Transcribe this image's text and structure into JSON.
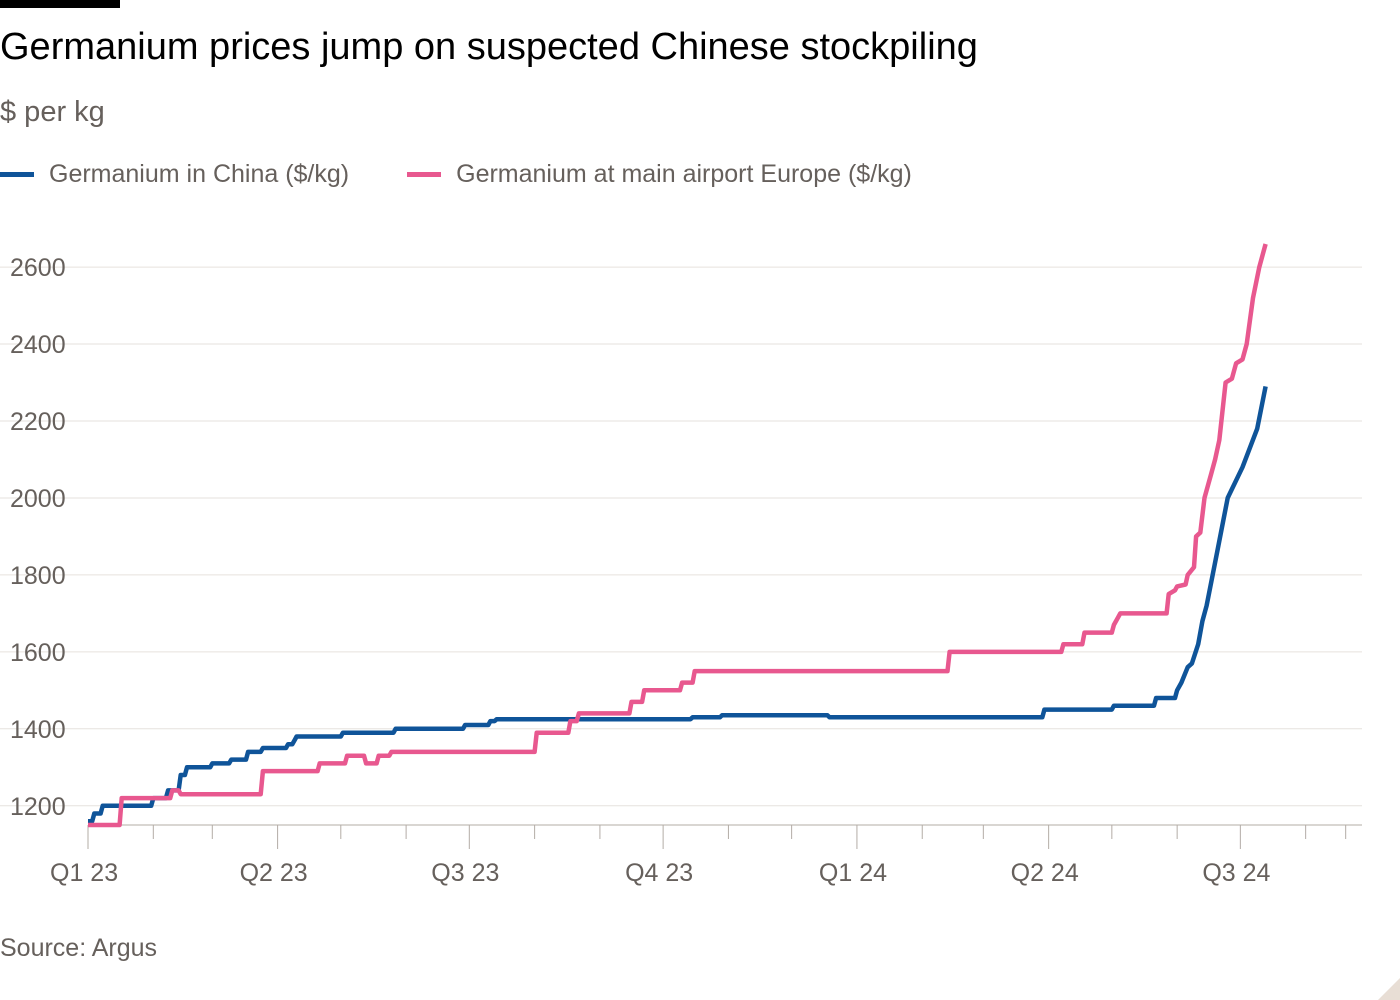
{
  "title": "Germanium prices jump on suspected Chinese stockpiling",
  "subtitle": "$ per kg",
  "source": "Source: Argus",
  "colors": {
    "china": "#0f5499",
    "europe": "#e8588f",
    "grid": "#e6e2de",
    "axis": "#b3aca6",
    "text": "#66605c"
  },
  "chart_data": {
    "type": "line",
    "title": "Germanium prices jump on suspected Chinese stockpiling",
    "ylabel": "$ per kg",
    "xlabel": "",
    "x_unit": "date",
    "x_range": [
      "2023-01-01",
      "2024-08-23"
    ],
    "ylim": [
      1150,
      2660
    ],
    "yticks": [
      1200,
      1400,
      1600,
      1800,
      2000,
      2200,
      2400,
      2600
    ],
    "xticks": [
      {
        "label": "Q1 23",
        "date": "2023-01-01"
      },
      {
        "label": "Q2 23",
        "date": "2023-04-01"
      },
      {
        "label": "Q3 23",
        "date": "2023-07-01"
      },
      {
        "label": "Q4 23",
        "date": "2023-10-01"
      },
      {
        "label": "Q1 24",
        "date": "2024-01-01"
      },
      {
        "label": "Q2 24",
        "date": "2024-04-01"
      },
      {
        "label": "Q3 24",
        "date": "2024-07-01"
      }
    ],
    "minor_ticks": [
      "2023-02-01",
      "2023-03-01",
      "2023-05-01",
      "2023-06-01",
      "2023-08-01",
      "2023-09-01",
      "2023-11-01",
      "2023-12-01",
      "2024-02-01",
      "2024-03-01",
      "2024-05-01",
      "2024-06-01",
      "2024-08-01",
      "2024-08-20"
    ],
    "grid": true,
    "legend": "top-left",
    "series": [
      {
        "name": "Germanium in China ($/kg)",
        "color": "#0f5499",
        "points": [
          [
            "2023-01-01",
            1160
          ],
          [
            "2023-01-03",
            1160
          ],
          [
            "2023-01-04",
            1180
          ],
          [
            "2023-01-07",
            1180
          ],
          [
            "2023-01-08",
            1200
          ],
          [
            "2023-01-31",
            1200
          ],
          [
            "2023-02-01",
            1220
          ],
          [
            "2023-02-07",
            1220
          ],
          [
            "2023-02-08",
            1240
          ],
          [
            "2023-02-13",
            1240
          ],
          [
            "2023-02-14",
            1280
          ],
          [
            "2023-02-16",
            1280
          ],
          [
            "2023-02-17",
            1300
          ],
          [
            "2023-02-28",
            1300
          ],
          [
            "2023-03-01",
            1310
          ],
          [
            "2023-03-09",
            1310
          ],
          [
            "2023-03-10",
            1320
          ],
          [
            "2023-03-17",
            1320
          ],
          [
            "2023-03-18",
            1340
          ],
          [
            "2023-03-24",
            1340
          ],
          [
            "2023-03-25",
            1350
          ],
          [
            "2023-04-05",
            1350
          ],
          [
            "2023-04-06",
            1360
          ],
          [
            "2023-04-08",
            1360
          ],
          [
            "2023-04-09",
            1370
          ],
          [
            "2023-04-10",
            1380
          ],
          [
            "2023-05-01",
            1380
          ],
          [
            "2023-05-02",
            1390
          ],
          [
            "2023-05-26",
            1390
          ],
          [
            "2023-05-27",
            1400
          ],
          [
            "2023-06-28",
            1400
          ],
          [
            "2023-06-29",
            1410
          ],
          [
            "2023-07-10",
            1410
          ],
          [
            "2023-07-11",
            1420
          ],
          [
            "2023-07-13",
            1420
          ],
          [
            "2023-07-14",
            1425
          ],
          [
            "2023-10-14",
            1425
          ],
          [
            "2023-10-15",
            1430
          ],
          [
            "2023-10-28",
            1430
          ],
          [
            "2023-10-29",
            1435
          ],
          [
            "2023-12-18",
            1435
          ],
          [
            "2023-12-19",
            1430
          ],
          [
            "2024-03-29",
            1430
          ],
          [
            "2024-03-30",
            1450
          ],
          [
            "2024-05-01",
            1450
          ],
          [
            "2024-05-02",
            1460
          ],
          [
            "2024-05-21",
            1460
          ],
          [
            "2024-05-22",
            1480
          ],
          [
            "2024-05-31",
            1480
          ],
          [
            "2024-06-01",
            1500
          ],
          [
            "2024-06-03",
            1520
          ],
          [
            "2024-06-06",
            1560
          ],
          [
            "2024-06-08",
            1570
          ],
          [
            "2024-06-11",
            1620
          ],
          [
            "2024-06-13",
            1680
          ],
          [
            "2024-06-15",
            1720
          ],
          [
            "2024-06-20",
            1860
          ],
          [
            "2024-06-25",
            2000
          ],
          [
            "2024-07-02",
            2080
          ],
          [
            "2024-07-09",
            2180
          ],
          [
            "2024-07-13",
            2290
          ]
        ]
      },
      {
        "name": "Germanium at main airport Europe ($/kg)",
        "color": "#e8588f",
        "points": [
          [
            "2023-01-01",
            1150
          ],
          [
            "2023-01-16",
            1150
          ],
          [
            "2023-01-17",
            1220
          ],
          [
            "2023-02-09",
            1220
          ],
          [
            "2023-02-10",
            1240
          ],
          [
            "2023-02-13",
            1240
          ],
          [
            "2023-02-14",
            1230
          ],
          [
            "2023-03-24",
            1230
          ],
          [
            "2023-03-25",
            1290
          ],
          [
            "2023-04-20",
            1290
          ],
          [
            "2023-04-21",
            1310
          ],
          [
            "2023-05-03",
            1310
          ],
          [
            "2023-05-04",
            1330
          ],
          [
            "2023-05-12",
            1330
          ],
          [
            "2023-05-13",
            1310
          ],
          [
            "2023-05-18",
            1310
          ],
          [
            "2023-05-19",
            1330
          ],
          [
            "2023-05-24",
            1330
          ],
          [
            "2023-05-25",
            1340
          ],
          [
            "2023-08-01",
            1340
          ],
          [
            "2023-08-02",
            1390
          ],
          [
            "2023-08-17",
            1390
          ],
          [
            "2023-08-18",
            1420
          ],
          [
            "2023-08-21",
            1420
          ],
          [
            "2023-08-22",
            1440
          ],
          [
            "2023-09-15",
            1440
          ],
          [
            "2023-09-16",
            1470
          ],
          [
            "2023-09-21",
            1470
          ],
          [
            "2023-09-22",
            1500
          ],
          [
            "2023-10-09",
            1500
          ],
          [
            "2023-10-10",
            1520
          ],
          [
            "2023-10-15",
            1520
          ],
          [
            "2023-10-16",
            1550
          ],
          [
            "2024-02-13",
            1550
          ],
          [
            "2024-02-14",
            1600
          ],
          [
            "2024-04-07",
            1600
          ],
          [
            "2024-04-08",
            1620
          ],
          [
            "2024-04-17",
            1620
          ],
          [
            "2024-04-18",
            1650
          ],
          [
            "2024-05-01",
            1650
          ],
          [
            "2024-05-02",
            1670
          ],
          [
            "2024-05-04",
            1690
          ],
          [
            "2024-05-05",
            1700
          ],
          [
            "2024-05-27",
            1700
          ],
          [
            "2024-05-28",
            1750
          ],
          [
            "2024-05-31",
            1760
          ],
          [
            "2024-06-01",
            1770
          ],
          [
            "2024-06-05",
            1775
          ],
          [
            "2024-06-06",
            1800
          ],
          [
            "2024-06-09",
            1820
          ],
          [
            "2024-06-10",
            1900
          ],
          [
            "2024-06-12",
            1910
          ],
          [
            "2024-06-14",
            2000
          ],
          [
            "2024-06-17",
            2060
          ],
          [
            "2024-06-19",
            2100
          ],
          [
            "2024-06-21",
            2150
          ],
          [
            "2024-06-24",
            2300
          ],
          [
            "2024-06-27",
            2310
          ],
          [
            "2024-06-29",
            2350
          ],
          [
            "2024-07-02",
            2360
          ],
          [
            "2024-07-04",
            2400
          ],
          [
            "2024-07-07",
            2520
          ],
          [
            "2024-07-10",
            2600
          ],
          [
            "2024-07-13",
            2660
          ]
        ]
      }
    ]
  }
}
